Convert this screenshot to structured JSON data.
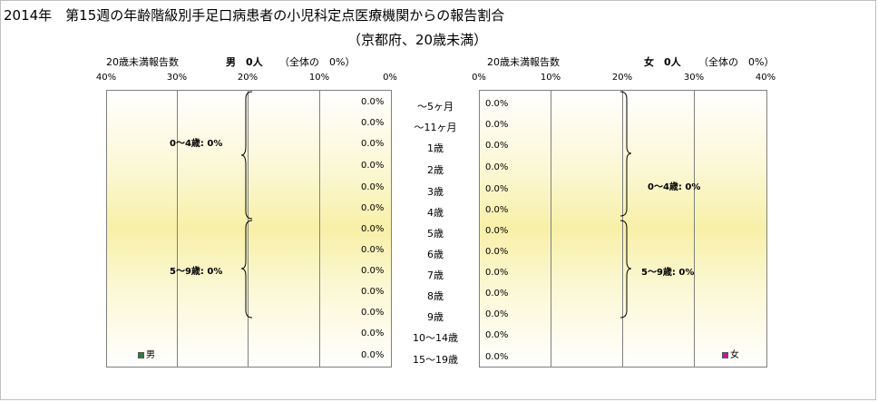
{
  "title_line1": "2014年　第15週の年齢階級別手足口病患者の小児科定点医療機関からの報告割合",
  "title_line2": "（京都府、20歳未満）",
  "male": {
    "subtitle_prefix": "20歳未満報告数",
    "count_label": "男　0人",
    "share_label": "（全体の　0%）",
    "legend": "男",
    "legend_color": "#2e7d32",
    "group_0_4": "0～4歳: 0%",
    "group_5_9": "5～9歳: 0%"
  },
  "female": {
    "subtitle_prefix": "20歳未満報告数",
    "count_label": "女　0人",
    "share_label": "（全体の　0%）",
    "legend": "女",
    "legend_color": "#c2189a",
    "group_0_4": "0～4歳: 0%",
    "group_5_9": "5～9歳: 0%"
  },
  "axis_ticks_male": [
    "40%",
    "30%",
    "20%",
    "10%",
    "0%"
  ],
  "axis_ticks_female": [
    "0%",
    "10%",
    "20%",
    "30%",
    "40%"
  ],
  "chart_data": {
    "type": "bar",
    "orientation": "horizontal-pyramid",
    "categories": [
      "～5ヶ月",
      "～11ヶ月",
      "1歳",
      "2歳",
      "3歳",
      "4歳",
      "5歳",
      "6歳",
      "7歳",
      "8歳",
      "9歳",
      "10～14歳",
      "15～19歳"
    ],
    "series": [
      {
        "name": "男",
        "values": [
          0,
          0,
          0,
          0,
          0,
          0,
          0,
          0,
          0,
          0,
          0,
          0,
          0
        ],
        "labels": [
          "0.0%",
          "0.0%",
          "0.0%",
          "0.0%",
          "0.0%",
          "0.0%",
          "0.0%",
          "0.0%",
          "0.0%",
          "0.0%",
          "0.0%",
          "0.0%",
          "0.0%"
        ]
      },
      {
        "name": "女",
        "values": [
          0,
          0,
          0,
          0,
          0,
          0,
          0,
          0,
          0,
          0,
          0,
          0,
          0
        ],
        "labels": [
          "0.0%",
          "0.0%",
          "0.0%",
          "0.0%",
          "0.0%",
          "0.0%",
          "0.0%",
          "0.0%",
          "0.0%",
          "0.0%",
          "0.0%",
          "0.0%",
          "0.0%"
        ]
      }
    ],
    "xlim": [
      0,
      40
    ],
    "unit": "%",
    "grid": true
  }
}
